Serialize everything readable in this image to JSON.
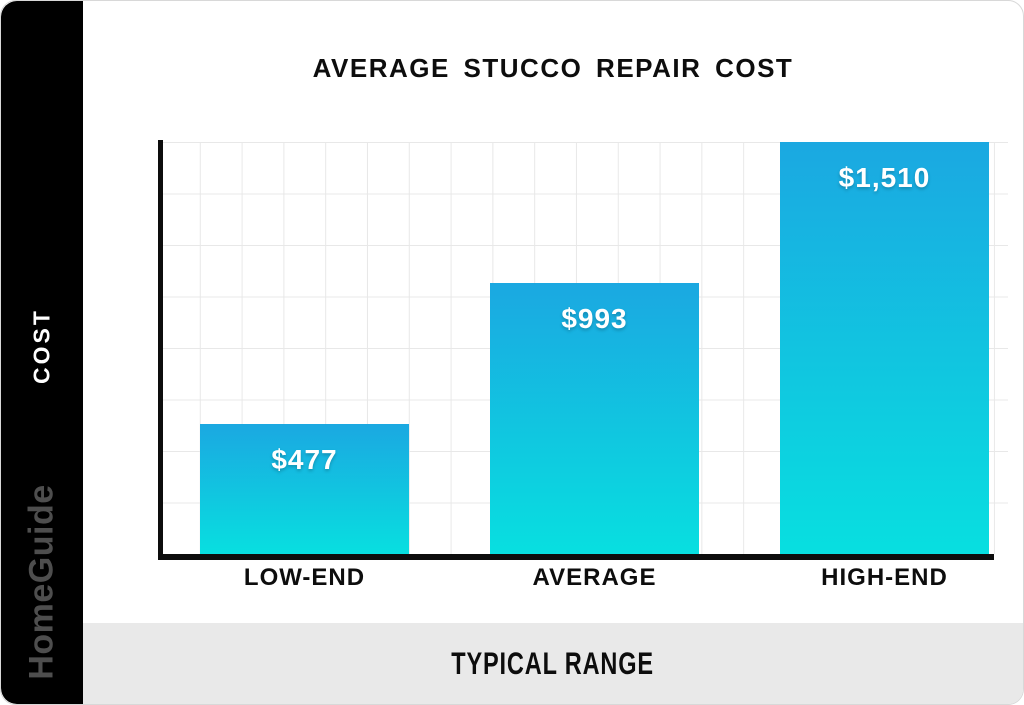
{
  "brand": {
    "rail_label": "COST",
    "logo_text": "HomeGuide"
  },
  "chart_data": {
    "type": "bar",
    "title": "AVERAGE STUCCO REPAIR COST",
    "categories": [
      "LOW-END",
      "AVERAGE",
      "HIGH-END"
    ],
    "values": [
      477,
      993,
      1510
    ],
    "value_labels": [
      "$477",
      "$993",
      "$1,510"
    ],
    "xlabel": "TYPICAL RANGE",
    "ylabel": "COST",
    "ylim": [
      0,
      1510
    ],
    "grid": true,
    "legend": "none",
    "bar_gradient_top": "#1BA8E1",
    "bar_gradient_bottom": "#08DFE0"
  },
  "footer": {
    "label": "TYPICAL RANGE"
  },
  "colors": {
    "sidebar_bg": "#000000",
    "rail_text": "#FFFFFF",
    "logo_text": "#4E4E4E",
    "footer_bg": "#E9E9E9",
    "grid_line": "#E8E8E8",
    "axis": "#0D0D0D",
    "value_text": "#FFFFFF"
  }
}
